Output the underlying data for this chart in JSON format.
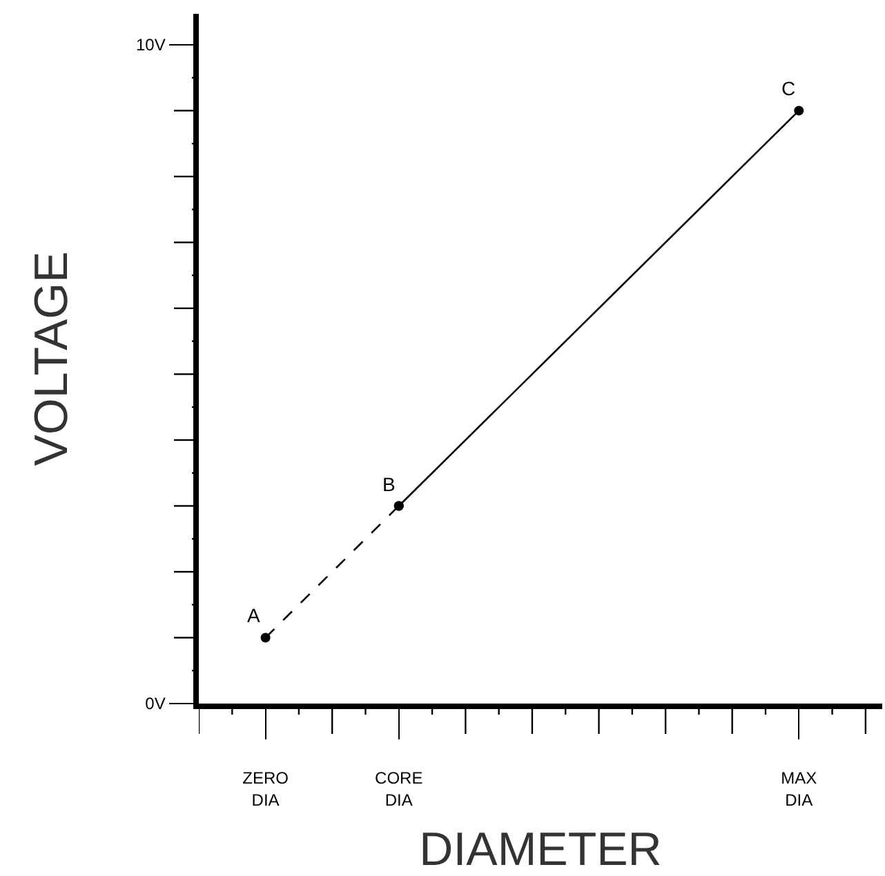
{
  "chart_data": {
    "type": "line",
    "xlabel": "DIAMETER",
    "ylabel": "VOLTAGE",
    "categories": [
      "ZERO\nDIA",
      null,
      "CORE\nDIA",
      null,
      null,
      null,
      null,
      null,
      "MAX\nDIA",
      null
    ],
    "series": [
      {
        "color": "#000000",
        "x": [
          "ZERO\nDIA",
          "CORE\nDIA"
        ],
        "values": [
          1,
          3
        ],
        "line_style": "dashed"
      },
      {
        "color": "#000000",
        "x": [
          "CORE\nDIA",
          "MAX\nDIA"
        ],
        "values": [
          3,
          9
        ],
        "line_style": "solid"
      }
    ],
    "marker": "circle",
    "annotations": [
      {
        "text": "A",
        "x": "ZERO\nDIA",
        "y": 1
      },
      {
        "text": "B",
        "x": "CORE\nDIA",
        "y": 3
      },
      {
        "text": "C",
        "x": "MAX\nDIA",
        "y": 9
      }
    ],
    "ylim": [
      0,
      10.47
    ],
    "yticks": [
      {
        "value": 0,
        "label": "0V"
      },
      {
        "value": 1,
        "label": null
      },
      {
        "value": 2,
        "label": null
      },
      {
        "value": 3,
        "label": null
      },
      {
        "value": 4,
        "label": null
      },
      {
        "value": 5,
        "label": null
      },
      {
        "value": 6,
        "label": null
      },
      {
        "value": 7,
        "label": null
      },
      {
        "value": 8,
        "label": null
      },
      {
        "value": 9,
        "label": null
      },
      {
        "value": 10,
        "label": "10V"
      }
    ]
  }
}
